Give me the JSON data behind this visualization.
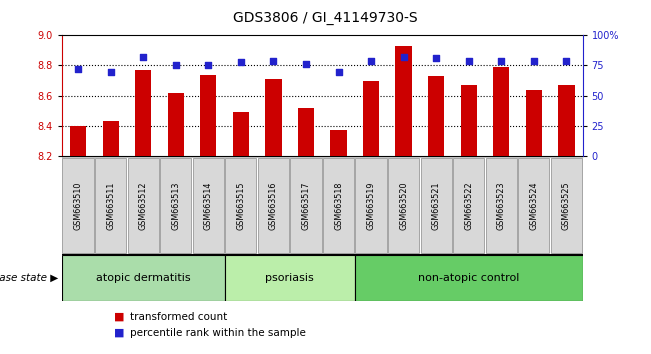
{
  "title": "GDS3806 / GI_41149730-S",
  "samples": [
    "GSM663510",
    "GSM663511",
    "GSM663512",
    "GSM663513",
    "GSM663514",
    "GSM663515",
    "GSM663516",
    "GSM663517",
    "GSM663518",
    "GSM663519",
    "GSM663520",
    "GSM663521",
    "GSM663522",
    "GSM663523",
    "GSM663524",
    "GSM663525"
  ],
  "bar_values": [
    8.4,
    8.43,
    8.77,
    8.62,
    8.74,
    8.49,
    8.71,
    8.52,
    8.37,
    8.7,
    8.93,
    8.73,
    8.67,
    8.79,
    8.64,
    8.67
  ],
  "dot_values": [
    72,
    70,
    82,
    75,
    75,
    78,
    79,
    76,
    70,
    79,
    82,
    81,
    79,
    79,
    79,
    79
  ],
  "bar_color": "#cc0000",
  "dot_color": "#2222cc",
  "ylim_left": [
    8.2,
    9.0
  ],
  "ylim_right": [
    0,
    100
  ],
  "yticks_left": [
    8.2,
    8.4,
    8.6,
    8.8,
    9.0
  ],
  "yticks_right": [
    0,
    25,
    50,
    75,
    100
  ],
  "ytick_labels_right": [
    "0",
    "25",
    "50",
    "75",
    "100%"
  ],
  "groups": [
    {
      "label": "atopic dermatitis",
      "start": 0,
      "end": 5,
      "color": "#aaddaa"
    },
    {
      "label": "psoriasis",
      "start": 5,
      "end": 9,
      "color": "#bbeeaa"
    },
    {
      "label": "non-atopic control",
      "start": 9,
      "end": 16,
      "color": "#66cc66"
    }
  ],
  "disease_state_label": "disease state",
  "legend_bar_label": "transformed count",
  "legend_dot_label": "percentile rank within the sample",
  "plot_bg_color": "#ffffff",
  "sample_box_color": "#d8d8d8",
  "bar_width": 0.5
}
